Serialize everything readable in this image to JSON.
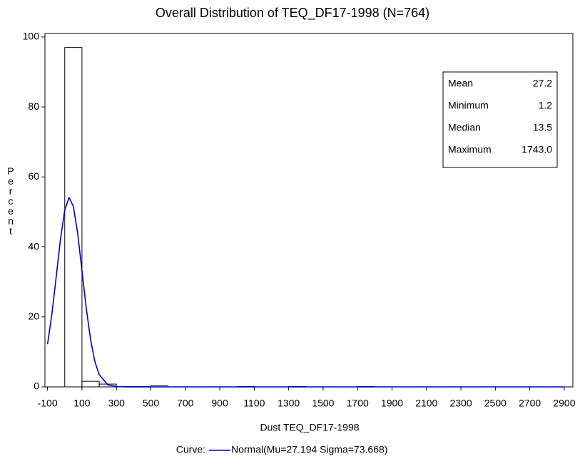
{
  "chart_data": {
    "type": "histogram",
    "title": "Overall Distribution of TEQ_DF17-1998 (N=764)",
    "xlabel": "Dust TEQ_DF17-1998",
    "ylabel": "Percent",
    "bins": [
      0,
      100,
      200,
      300,
      400,
      500,
      600,
      700,
      800,
      900,
      1000,
      1100,
      1200,
      1300,
      1400,
      1500,
      1600,
      1700,
      1800
    ],
    "values": [
      97.0,
      1.6,
      0.8,
      0.1,
      0.1,
      0.3,
      0,
      0,
      0,
      0,
      0.1,
      0,
      0,
      0.1,
      0,
      0,
      0,
      0.1
    ],
    "bar_color": "#000000",
    "curve": {
      "name": "Normal(Mu=27.194 Sigma=73.668)",
      "color": "#0000cc",
      "x": [
        -100,
        -75,
        -50,
        -25,
        0,
        25,
        50,
        75,
        100,
        125,
        150,
        175,
        200,
        250,
        300,
        350,
        2900
      ],
      "values": [
        12.2,
        20.7,
        31.3,
        42.1,
        50.6,
        54.1,
        51.6,
        43.9,
        33.2,
        22.4,
        13.5,
        7.2,
        3.5,
        0.6,
        0.1,
        0,
        0
      ]
    },
    "legend_prefix": "Curve:",
    "stats": [
      {
        "label": "Mean",
        "value": "27.2"
      },
      {
        "label": "Minimum",
        "value": "1.2"
      },
      {
        "label": "Median",
        "value": "13.5"
      },
      {
        "label": "Maximum",
        "value": "1743.0"
      }
    ],
    "xlim": [
      -115,
      2950
    ],
    "ylim": [
      0,
      101
    ],
    "xticks": [
      -100,
      100,
      300,
      500,
      700,
      900,
      1100,
      1300,
      1500,
      1700,
      1900,
      2100,
      2300,
      2500,
      2700,
      2900
    ],
    "yticks": [
      0,
      20,
      40,
      60,
      80,
      100
    ]
  }
}
